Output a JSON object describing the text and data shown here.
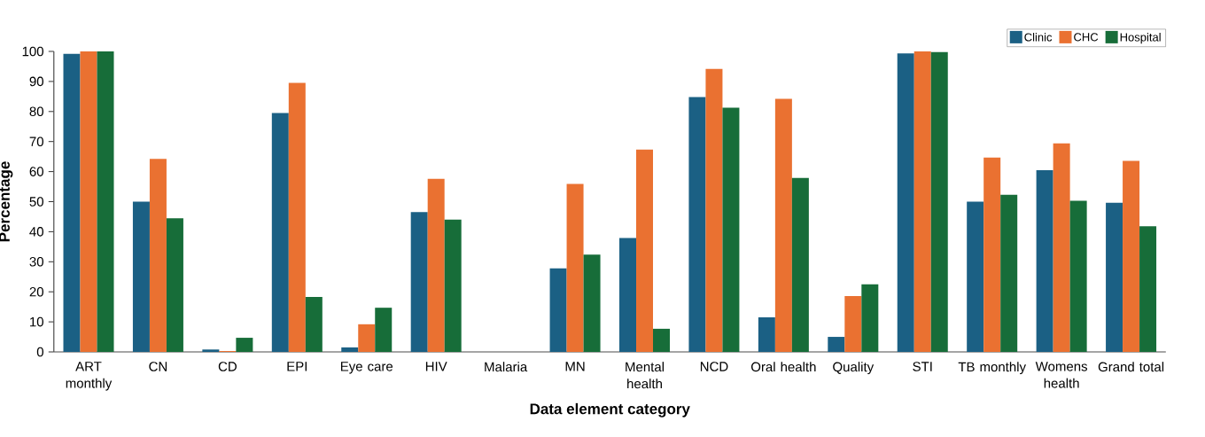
{
  "chart_data": {
    "type": "bar",
    "xlabel": "Data element category",
    "ylabel": "Percentage",
    "categories": [
      "ART monthly",
      "CN",
      "CD",
      "EPI",
      "Eye care",
      "HIV",
      "Malaria",
      "MN",
      "Mental health",
      "NCD",
      "Oral health",
      "Quality",
      "STI",
      "TB monthly",
      "Womens health",
      "Grand total"
    ],
    "series": [
      {
        "name": "Clinic",
        "color": "#1b6084",
        "values": [
          99.2,
          50,
          0.8,
          79.5,
          1.5,
          46.5,
          0,
          27.8,
          37.9,
          84.8,
          11.5,
          5,
          99.3,
          50,
          60.5,
          49.6
        ]
      },
      {
        "name": "CHC",
        "color": "#ea7131",
        "values": [
          100,
          64.2,
          0.3,
          89.5,
          9.2,
          57.6,
          0,
          55.9,
          67.3,
          94.2,
          84.2,
          18.6,
          100,
          64.7,
          69.4,
          63.6
        ]
      },
      {
        "name": "Hospital",
        "color": "#176d39",
        "values": [
          100,
          44.5,
          4.7,
          18.3,
          14.7,
          44,
          0,
          32.4,
          7.7,
          81.3,
          57.9,
          22.5,
          99.8,
          52.3,
          50.3,
          41.8
        ]
      }
    ],
    "ylim": [
      0,
      100
    ],
    "yticks": [
      0,
      10,
      20,
      30,
      40,
      50,
      60,
      70,
      80,
      90,
      100
    ],
    "grid": false,
    "legend": "top right"
  }
}
